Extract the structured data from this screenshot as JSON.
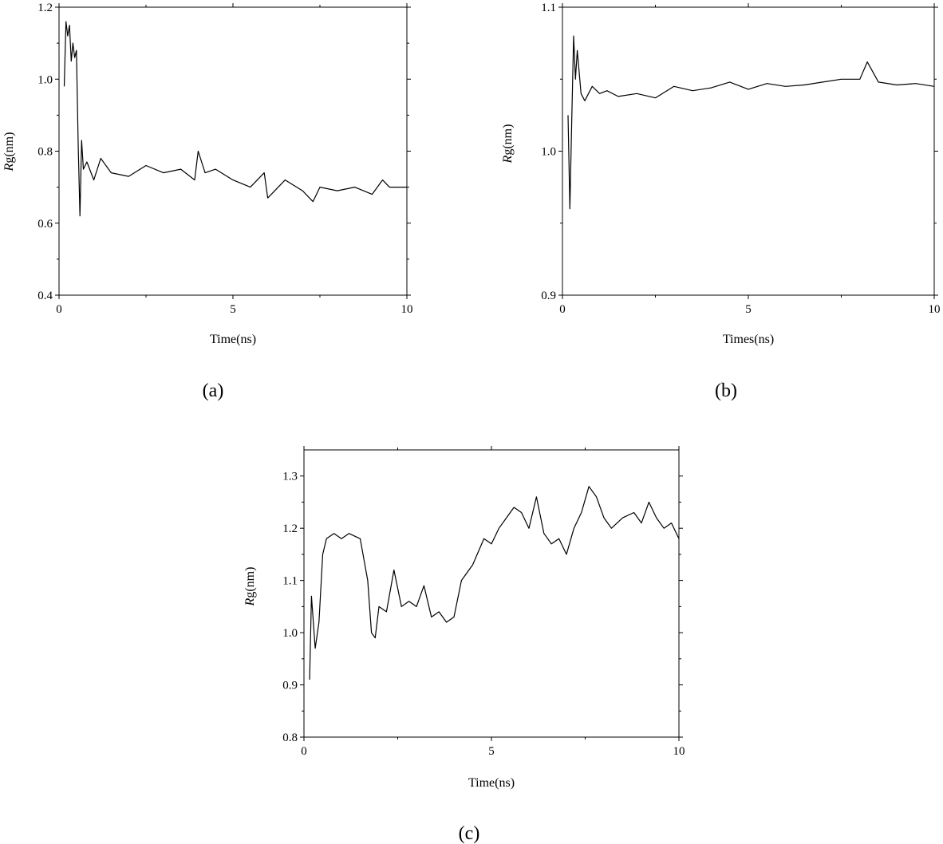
{
  "chart_data": [
    {
      "type": "line",
      "panel_label": "(a)",
      "xlabel": "Time(ns)",
      "ylabel": {
        "italic": "R",
        "rest": "g(nm)"
      },
      "xlim": [
        0,
        10
      ],
      "ylim": [
        0.4,
        1.2
      ],
      "xticks": [
        0,
        5,
        10
      ],
      "yticks": [
        0.4,
        0.6,
        0.8,
        1.0,
        1.2
      ],
      "ytick_labels": [
        "0.4",
        "0.6",
        "0.8",
        "1.0",
        "1.2"
      ],
      "grid": false,
      "series": [
        {
          "x": [
            0.15,
            0.2,
            0.25,
            0.3,
            0.35,
            0.4,
            0.45,
            0.5,
            0.55,
            0.6,
            0.65,
            0.7,
            0.8,
            1.0,
            1.2,
            1.5,
            2.0,
            2.5,
            3.0,
            3.5,
            3.9,
            4.0,
            4.2,
            4.5,
            5.0,
            5.5,
            5.9,
            6.0,
            6.5,
            7.0,
            7.3,
            7.5,
            8.0,
            8.5,
            9.0,
            9.3,
            9.5,
            10.0
          ],
          "y": [
            0.98,
            1.16,
            1.12,
            1.15,
            1.05,
            1.1,
            1.06,
            1.08,
            0.82,
            0.62,
            0.83,
            0.75,
            0.77,
            0.72,
            0.78,
            0.74,
            0.73,
            0.76,
            0.74,
            0.75,
            0.72,
            0.8,
            0.74,
            0.75,
            0.72,
            0.7,
            0.74,
            0.67,
            0.72,
            0.69,
            0.66,
            0.7,
            0.69,
            0.7,
            0.68,
            0.72,
            0.7,
            0.7
          ]
        }
      ]
    },
    {
      "type": "line",
      "panel_label": "(b)",
      "xlabel": "Times(ns)",
      "ylabel": {
        "italic": "R",
        "rest": "g(nm)"
      },
      "xlim": [
        0,
        10
      ],
      "ylim": [
        0.9,
        1.1
      ],
      "xticks": [
        0,
        5,
        10
      ],
      "yticks": [
        0.9,
        1.0,
        1.1
      ],
      "ytick_labels": [
        "0.9",
        "1.0",
        "1.1"
      ],
      "grid": false,
      "series": [
        {
          "x": [
            0.15,
            0.2,
            0.25,
            0.3,
            0.35,
            0.4,
            0.5,
            0.6,
            0.8,
            1.0,
            1.2,
            1.5,
            2.0,
            2.5,
            3.0,
            3.5,
            4.0,
            4.5,
            5.0,
            5.5,
            6.0,
            6.5,
            7.0,
            7.5,
            8.0,
            8.2,
            8.5,
            9.0,
            9.5,
            10.0
          ],
          "y": [
            1.025,
            0.96,
            1.02,
            1.08,
            1.05,
            1.07,
            1.04,
            1.035,
            1.045,
            1.04,
            1.042,
            1.038,
            1.04,
            1.037,
            1.045,
            1.042,
            1.044,
            1.048,
            1.043,
            1.047,
            1.045,
            1.046,
            1.048,
            1.05,
            1.05,
            1.062,
            1.048,
            1.046,
            1.047,
            1.045
          ]
        }
      ]
    },
    {
      "type": "line",
      "panel_label": "(c)",
      "xlabel": "Time(ns)",
      "ylabel": {
        "italic": "R",
        "rest": "g(nm)"
      },
      "xlim": [
        0,
        10
      ],
      "ylim": [
        0.8,
        1.35
      ],
      "xticks": [
        0,
        5,
        10
      ],
      "yticks": [
        0.8,
        0.9,
        1.0,
        1.1,
        1.2,
        1.3
      ],
      "ytick_labels": [
        "0.8",
        "0.9",
        "1.0",
        "1.1",
        "1.2",
        "1.3"
      ],
      "grid": false,
      "series": [
        {
          "x": [
            0.15,
            0.2,
            0.3,
            0.4,
            0.5,
            0.6,
            0.8,
            1.0,
            1.2,
            1.5,
            1.7,
            1.8,
            1.9,
            2.0,
            2.2,
            2.4,
            2.6,
            2.8,
            3.0,
            3.2,
            3.4,
            3.6,
            3.8,
            4.0,
            4.2,
            4.5,
            4.8,
            5.0,
            5.2,
            5.4,
            5.6,
            5.8,
            6.0,
            6.2,
            6.4,
            6.6,
            6.8,
            7.0,
            7.2,
            7.4,
            7.6,
            7.8,
            8.0,
            8.2,
            8.5,
            8.8,
            9.0,
            9.2,
            9.4,
            9.6,
            9.8,
            10.0
          ],
          "y": [
            0.91,
            1.07,
            0.97,
            1.02,
            1.15,
            1.18,
            1.19,
            1.18,
            1.19,
            1.18,
            1.1,
            1.0,
            0.99,
            1.05,
            1.04,
            1.12,
            1.05,
            1.06,
            1.05,
            1.09,
            1.03,
            1.04,
            1.02,
            1.03,
            1.1,
            1.13,
            1.18,
            1.17,
            1.2,
            1.22,
            1.24,
            1.23,
            1.2,
            1.26,
            1.19,
            1.17,
            1.18,
            1.15,
            1.2,
            1.23,
            1.28,
            1.26,
            1.22,
            1.2,
            1.22,
            1.23,
            1.21,
            1.25,
            1.22,
            1.2,
            1.21,
            1.18
          ]
        }
      ]
    }
  ]
}
